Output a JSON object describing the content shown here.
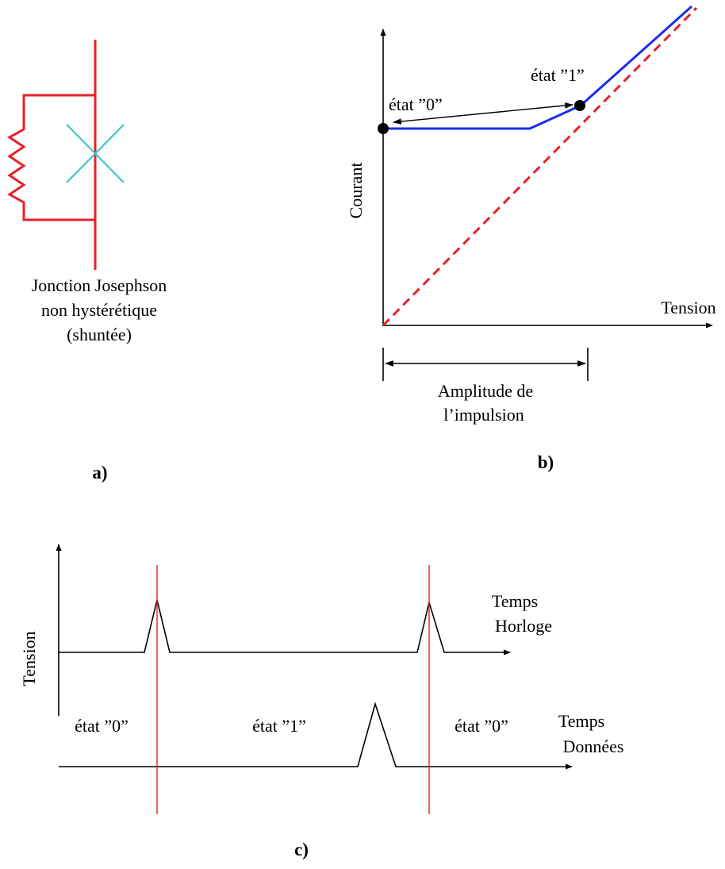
{
  "colors": {
    "circuit": "#e8202a",
    "junction_cross": "#3cc8c8",
    "iv_curve": "#1a2ee8",
    "ohmic_line": "#e8202a",
    "axes": "#000000",
    "clock_markers": "#e8202a"
  },
  "panel_a": {
    "caption_line1": "Jonction Josephson",
    "caption_line2": "non hystérétique",
    "caption_line3": "(shuntée)",
    "panel_label": "a)"
  },
  "panel_b": {
    "ylabel": "Courant",
    "xlabel": "Tension",
    "state0_label": "état ”0”",
    "state1_label": "état ”1”",
    "amplitude_line1": "Amplitude de",
    "amplitude_line2": "l’impulsion",
    "panel_label": "b)"
  },
  "panel_c": {
    "ylabel": "Tension",
    "clock_time_label": "Temps",
    "clock_label": "Horloge",
    "data_time_label": "Temps",
    "data_label": "Données",
    "state_left": "état ”0”",
    "state_middle": "état ”1”",
    "state_right": "état ”0”",
    "panel_label": "c)"
  }
}
